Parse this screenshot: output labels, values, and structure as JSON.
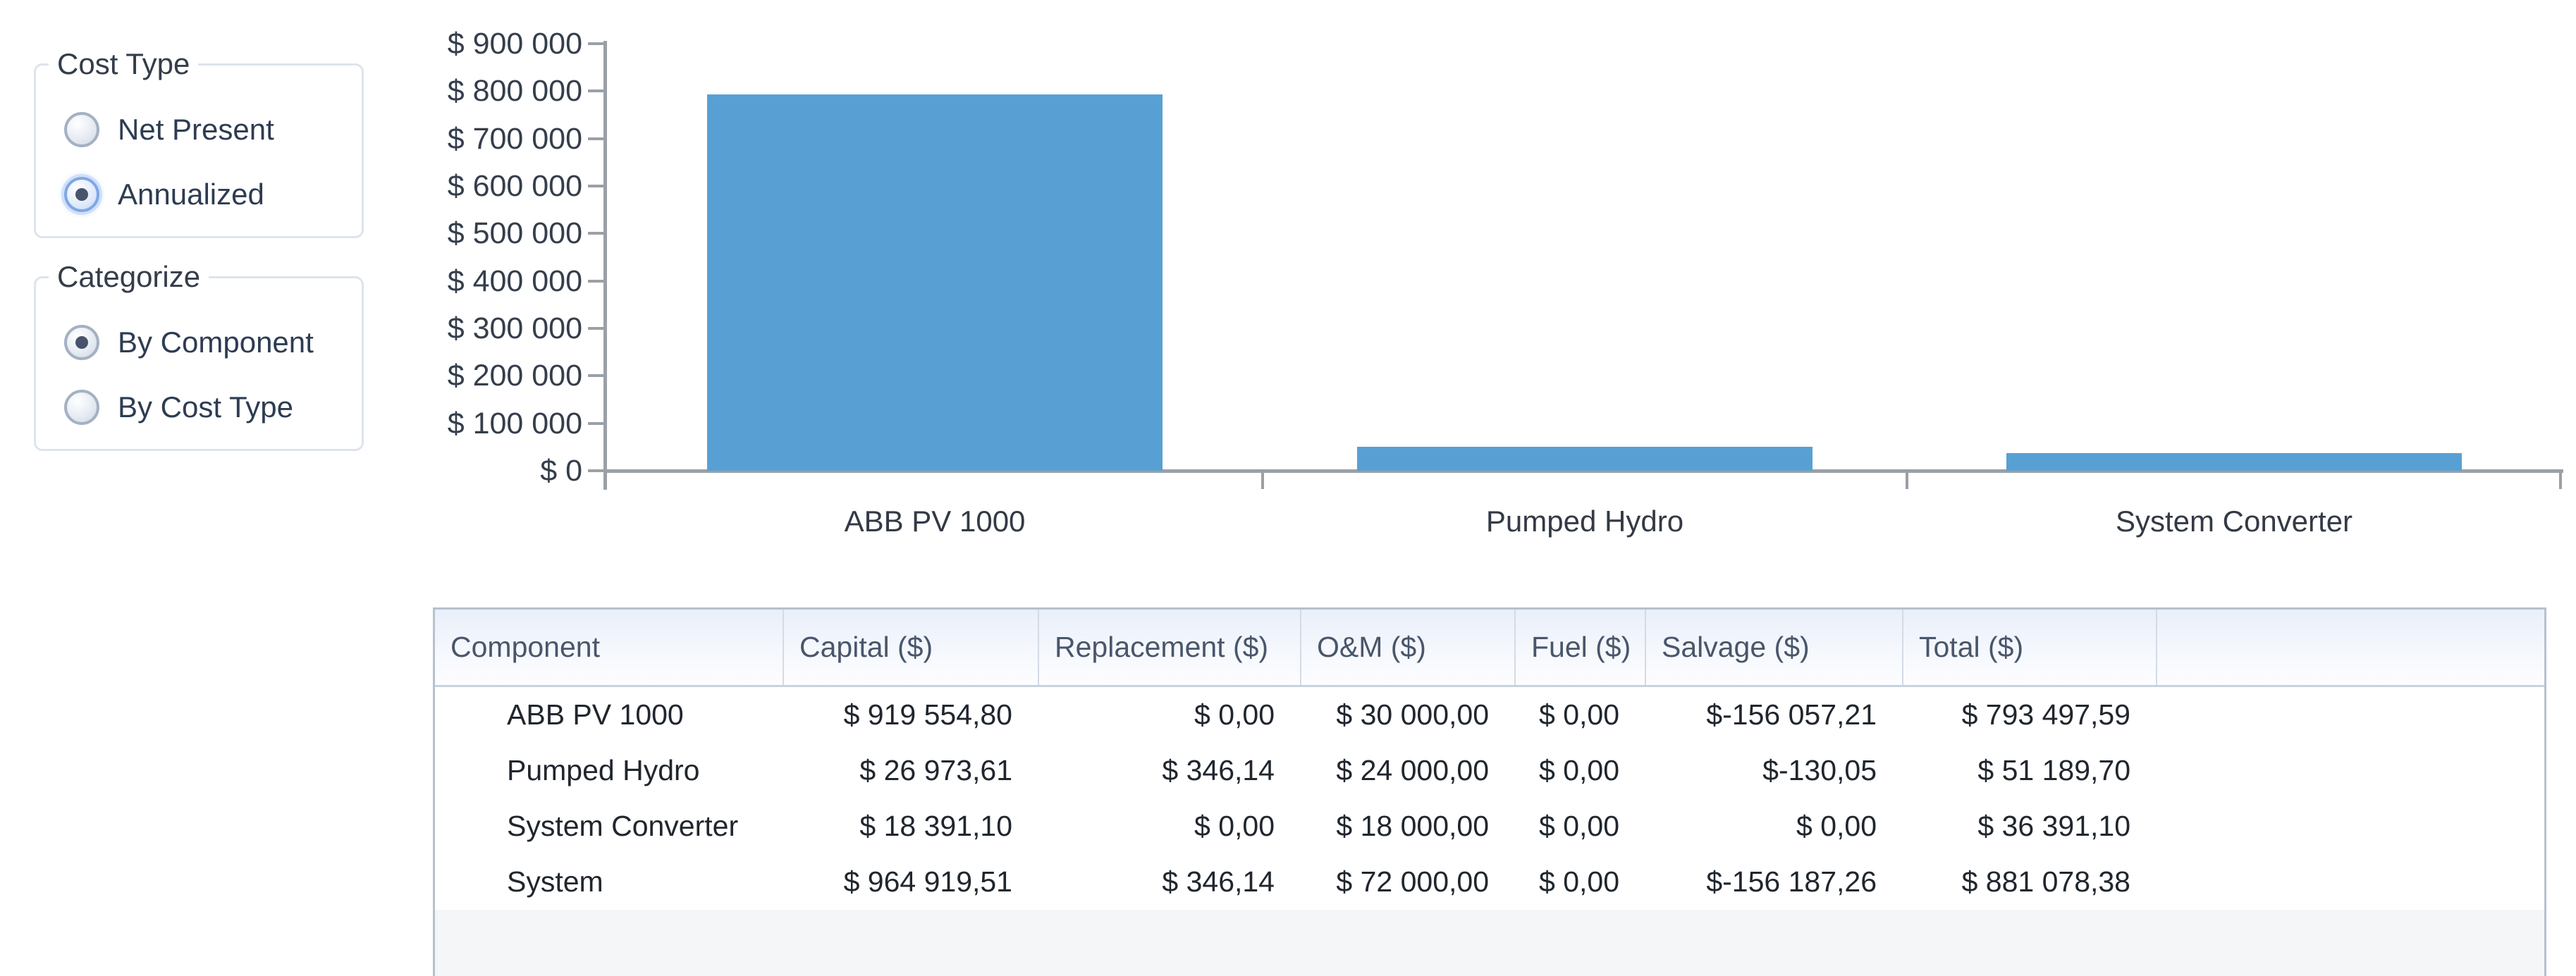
{
  "panels": {
    "cost_type": {
      "label": "Cost Type",
      "options": [
        {
          "label": "Net Present",
          "selected": false,
          "focused": false
        },
        {
          "label": "Annualized",
          "selected": true,
          "focused": true
        }
      ]
    },
    "categorize": {
      "label": "Categorize",
      "options": [
        {
          "label": "By Component",
          "selected": true,
          "focused": false
        },
        {
          "label": "By Cost Type",
          "selected": false,
          "focused": false
        }
      ]
    }
  },
  "chart_data": {
    "type": "bar",
    "title": "",
    "xlabel": "",
    "ylabel": "",
    "categories": [
      "ABB PV 1000",
      "Pumped Hydro",
      "System Converter"
    ],
    "values": [
      793497.59,
      51189.7,
      36391.1
    ],
    "ylim": [
      0,
      900000
    ],
    "y_tick_step": 100000,
    "y_tick_labels": [
      "$ 900 000",
      "$ 800 000",
      "$ 700 000",
      "$ 600 000",
      "$ 500 000",
      "$ 400 000",
      "$ 300 000",
      "$ 200 000",
      "$ 100 000",
      "$ 0"
    ],
    "grid": false,
    "legend": "none",
    "bar_color": "#58a0d3",
    "axis_color": "#9aa0a6"
  },
  "table": {
    "columns": [
      "Component",
      "Capital ($)",
      "Replacement ($)",
      "O&M ($)",
      "Fuel ($)",
      "Salvage ($)",
      "Total ($)",
      ""
    ],
    "rows": [
      [
        "ABB PV 1000",
        "$ 919 554,80",
        "$ 0,00",
        "$ 30 000,00",
        "$ 0,00",
        "$-156 057,21",
        "$ 793 497,59",
        ""
      ],
      [
        "Pumped Hydro",
        "$ 26 973,61",
        "$ 346,14",
        "$ 24 000,00",
        "$ 0,00",
        "$-130,05",
        "$ 51 189,70",
        ""
      ],
      [
        "System Converter",
        "$ 18 391,10",
        "$ 0,00",
        "$ 18 000,00",
        "$ 0,00",
        "$ 0,00",
        "$ 36 391,10",
        ""
      ],
      [
        "System",
        "$ 964 919,51",
        "$ 346,14",
        "$ 72 000,00",
        "$ 0,00",
        "$-156 187,26",
        "$ 881 078,38",
        ""
      ]
    ]
  }
}
